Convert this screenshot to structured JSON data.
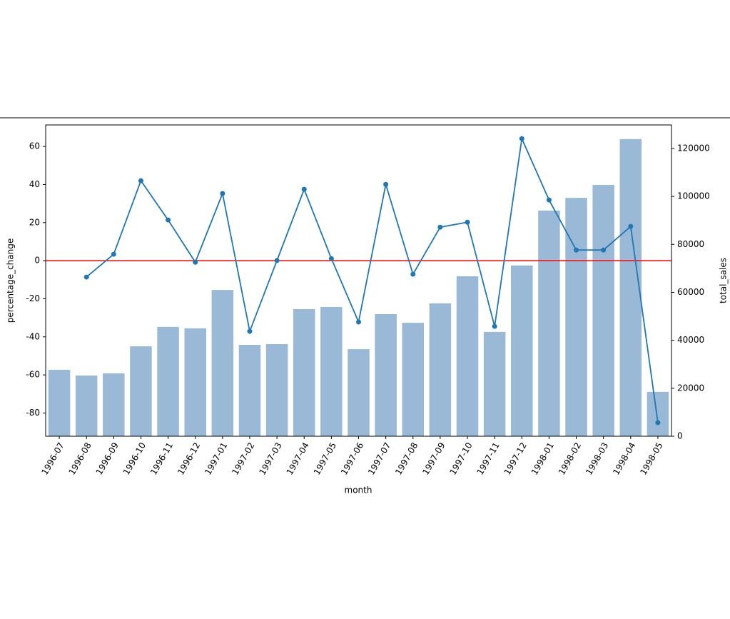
{
  "chart_data": {
    "type": "bar-line",
    "x_label": "month",
    "y_label": "percentage_change",
    "y2_label": "total_sales",
    "categories": [
      "1996-07",
      "1996-08",
      "1996-09",
      "1996-10",
      "1996-11",
      "1996-12",
      "1997-01",
      "1997-02",
      "1997-03",
      "1997-04",
      "1997-05",
      "1997-06",
      "1997-07",
      "1997-08",
      "1997-09",
      "1997-10",
      "1997-11",
      "1997-12",
      "1998-01",
      "1998-02",
      "1998-03",
      "1998-04",
      "1998-05"
    ],
    "series": [
      {
        "name": "total_sales",
        "type": "bar",
        "axis": "y2",
        "color": "#9ab9d6",
        "values": [
          27700,
          25300,
          26200,
          37500,
          45600,
          45000,
          61000,
          38100,
          38400,
          53000,
          53900,
          36300,
          50900,
          47300,
          55400,
          66700,
          43500,
          71200,
          94100,
          99400,
          104800,
          123900,
          18500
        ]
      },
      {
        "name": "percentage_change",
        "type": "line",
        "color": "#1f77b4",
        "values": [
          null,
          -8.6,
          3.4,
          42,
          21.4,
          -0.8,
          35.3,
          -37.1,
          0.1,
          37.5,
          1.1,
          -32.2,
          40.1,
          -7.1,
          17.6,
          20.2,
          -34.5,
          64.1,
          31.9,
          5.6,
          5.6,
          18,
          -85.1
        ]
      }
    ],
    "reference_line": {
      "value": 0,
      "color": "#ff0000"
    },
    "ylim": [
      -92.2,
      71.3
    ],
    "yticks": [
      -80,
      -60,
      -40,
      -20,
      0,
      20,
      40,
      60
    ],
    "y2lim": [
      0,
      129800
    ],
    "y2ticks": [
      0,
      20000,
      40000,
      60000,
      80000,
      100000,
      120000
    ]
  }
}
